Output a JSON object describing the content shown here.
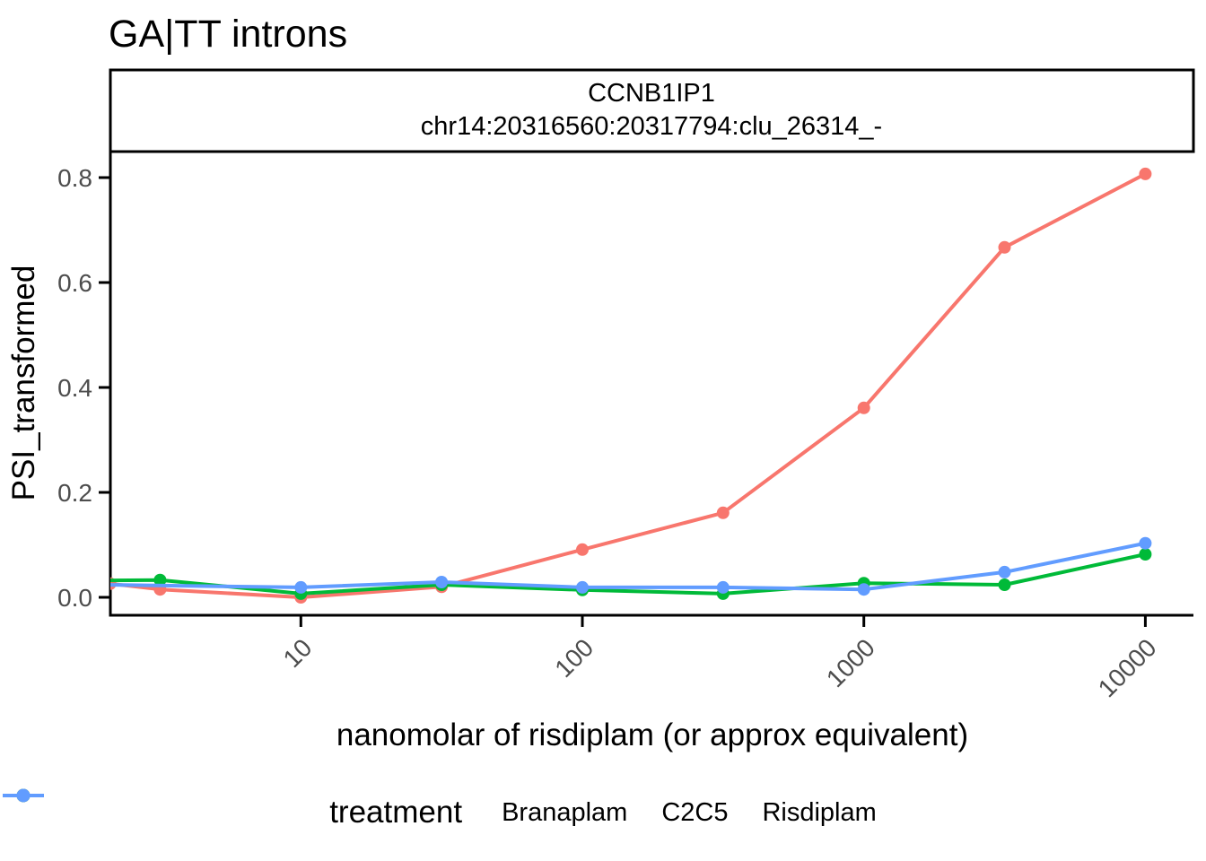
{
  "title": "GA|TT introns",
  "facet": {
    "line1": "CCNB1IP1",
    "line2": "chr14:20316560:20317794:clu_26314_-"
  },
  "axes": {
    "y_label": "PSI_transformed",
    "x_label": "nanomolar of risdiplam (or approx equivalent)",
    "y_ticks": [
      {
        "value": 0.0,
        "label": "0.0"
      },
      {
        "value": 0.2,
        "label": "0.2"
      },
      {
        "value": 0.4,
        "label": "0.4"
      },
      {
        "value": 0.6,
        "label": "0.6"
      },
      {
        "value": 0.8,
        "label": "0.8"
      }
    ],
    "x_ticks": [
      {
        "value": 10,
        "label": "10"
      },
      {
        "value": 100,
        "label": "100"
      },
      {
        "value": 1000,
        "label": "1000"
      },
      {
        "value": 10000,
        "label": "10000"
      }
    ]
  },
  "legend": {
    "title": "treatment",
    "items": [
      {
        "label": "Branaplam",
        "color": "#F8766D"
      },
      {
        "label": "C2C5",
        "color": "#00BA38"
      },
      {
        "label": "Risdiplam",
        "color": "#619CFF"
      }
    ]
  },
  "colors": {
    "axis_text": "#4d4d4d",
    "axis_line": "#000000",
    "panel_background": "#ffffff",
    "branaplam": "#F8766D",
    "c2c5": "#00BA38",
    "risdiplam": "#619CFF"
  },
  "chart_data": {
    "type": "line",
    "title": "GA|TT introns",
    "facet_label": "CCNB1IP1 chr14:20316560:20317794:clu_26314_-",
    "xlabel": "nanomolar of risdiplam (or approx equivalent)",
    "ylabel": "PSI_transformed",
    "x_scale": "log10",
    "xlim": [
      2.1,
      14800
    ],
    "ylim": [
      -0.034,
      0.851
    ],
    "grid": false,
    "legend_position": "bottom",
    "series": [
      {
        "name": "Branaplam",
        "color": "#F8766D",
        "points": [
          {
            "dose": 2.1,
            "psi": 0.026
          },
          {
            "dose": 3.16,
            "psi": 0.015
          },
          {
            "dose": 10,
            "psi": 0.0
          },
          {
            "dose": 31.6,
            "psi": 0.02
          },
          {
            "dose": 100,
            "psi": 0.091
          },
          {
            "dose": 316,
            "psi": 0.161
          },
          {
            "dose": 1000,
            "psi": 0.361
          },
          {
            "dose": 3160,
            "psi": 0.667
          },
          {
            "dose": 10000,
            "psi": 0.807
          }
        ]
      },
      {
        "name": "C2C5",
        "color": "#00BA38",
        "points": [
          {
            "dose": 1.0,
            "psi": 0.031,
            "marker": false
          },
          {
            "dose": 3.16,
            "psi": 0.033
          },
          {
            "dose": 10,
            "psi": 0.007
          },
          {
            "dose": 31.6,
            "psi": 0.024
          },
          {
            "dose": 100,
            "psi": 0.014
          },
          {
            "dose": 316,
            "psi": 0.007
          },
          {
            "dose": 1000,
            "psi": 0.027
          },
          {
            "dose": 3160,
            "psi": 0.024
          },
          {
            "dose": 10000,
            "psi": 0.082
          }
        ]
      },
      {
        "name": "Risdiplam",
        "color": "#619CFF",
        "points": [
          {
            "dose": 1.0,
            "psi": 0.026,
            "marker": false
          },
          {
            "dose": 10,
            "psi": 0.019
          },
          {
            "dose": 31.6,
            "psi": 0.029
          },
          {
            "dose": 100,
            "psi": 0.019
          },
          {
            "dose": 316,
            "psi": 0.019
          },
          {
            "dose": 1000,
            "psi": 0.015
          },
          {
            "dose": 3160,
            "psi": 0.048
          },
          {
            "dose": 10000,
            "psi": 0.103
          }
        ]
      }
    ]
  }
}
